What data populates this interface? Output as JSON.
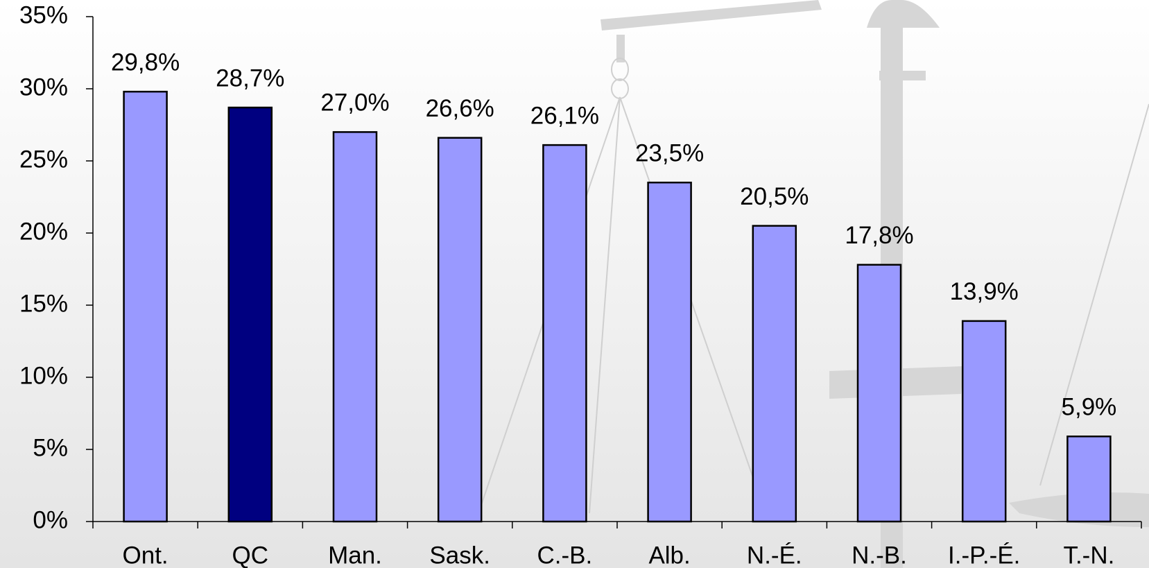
{
  "chart_data": {
    "type": "bar",
    "categories": [
      "Ont.",
      "QC",
      "Man.",
      "Sask.",
      "C.-B.",
      "Alb.",
      "N.-É.",
      "N.-B.",
      "I.-P.-É.",
      "T.-N."
    ],
    "values": [
      29.8,
      28.7,
      27.0,
      26.6,
      26.1,
      23.5,
      20.5,
      17.8,
      13.9,
      5.9
    ],
    "value_labels": [
      "29,8%",
      "28,7%",
      "27,0%",
      "26,6%",
      "26,1%",
      "23,5%",
      "20,5%",
      "17,8%",
      "13,9%",
      "5,9%"
    ],
    "colors": [
      "#9999ff",
      "#000080",
      "#9999ff",
      "#9999ff",
      "#9999ff",
      "#9999ff",
      "#9999ff",
      "#9999ff",
      "#9999ff",
      "#9999ff"
    ],
    "ylim": [
      0,
      35
    ],
    "yticks": [
      {
        "value": 0,
        "label": "0%"
      },
      {
        "value": 5,
        "label": "5%"
      },
      {
        "value": 10,
        "label": "10%"
      },
      {
        "value": 15,
        "label": "15%"
      },
      {
        "value": 20,
        "label": "20%"
      },
      {
        "value": 25,
        "label": "25%"
      },
      {
        "value": 30,
        "label": "30%"
      },
      {
        "value": 35,
        "label": "35%"
      }
    ]
  }
}
